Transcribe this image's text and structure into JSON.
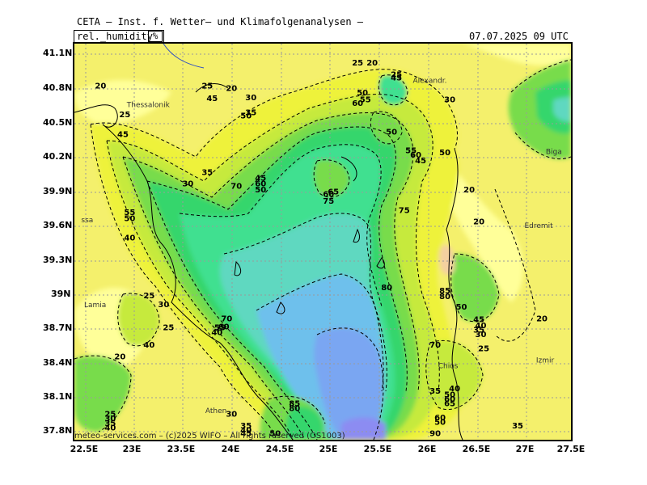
{
  "header": {
    "title": "CETA – Inst. f. Wetter– und Klimafolgenanalysen –",
    "parameter": "rel._humidity",
    "unit": "%",
    "datetime": "07.07.2025 09 UTC"
  },
  "axes": {
    "lat_ticks": [
      "41.1N",
      "40.8N",
      "40.5N",
      "40.2N",
      "39.9N",
      "39.6N",
      "39.3N",
      "39N",
      "38.7N",
      "38.4N",
      "38.1N",
      "37.8N"
    ],
    "lon_ticks": [
      "22.5E",
      "23E",
      "23.5E",
      "24E",
      "24.5E",
      "25E",
      "25.5E",
      "26E",
      "26.5E",
      "27E",
      "27.5E"
    ]
  },
  "cities": [
    {
      "name": "Thessalonik",
      "lon": 22.92,
      "lat": 40.64
    },
    {
      "name": "ssa",
      "lon": 22.45,
      "lat": 39.64
    },
    {
      "name": "Lamia",
      "lon": 22.48,
      "lat": 38.9
    },
    {
      "name": "Athen",
      "lon": 23.73,
      "lat": 37.98
    },
    {
      "name": "Alexandr.",
      "lon": 25.87,
      "lat": 40.85
    },
    {
      "name": "Biga",
      "lon": 27.24,
      "lat": 40.23
    },
    {
      "name": "Edremit",
      "lon": 27.02,
      "lat": 39.59
    },
    {
      "name": "Izmir",
      "lon": 27.14,
      "lat": 38.42
    },
    {
      "name": "Chios",
      "lon": 26.13,
      "lat": 38.37
    }
  ],
  "contour_labels": [
    {
      "text": "20",
      "lon": 22.65,
      "lat": 40.8
    },
    {
      "text": "25",
      "lon": 22.9,
      "lat": 40.55
    },
    {
      "text": "45",
      "lon": 22.88,
      "lat": 40.38
    },
    {
      "text": "55",
      "lon": 22.95,
      "lat": 39.7
    },
    {
      "text": "50",
      "lon": 22.95,
      "lat": 39.65
    },
    {
      "text": "40",
      "lon": 22.95,
      "lat": 39.48
    },
    {
      "text": "25",
      "lon": 23.15,
      "lat": 38.98
    },
    {
      "text": "30",
      "lon": 23.3,
      "lat": 38.9
    },
    {
      "text": "25",
      "lon": 23.35,
      "lat": 38.7
    },
    {
      "text": "40",
      "lon": 23.15,
      "lat": 38.55
    },
    {
      "text": "20",
      "lon": 22.85,
      "lat": 38.45
    },
    {
      "text": "25",
      "lon": 23.75,
      "lat": 40.8
    },
    {
      "text": "20",
      "lon": 24.0,
      "lat": 40.78
    },
    {
      "text": "30",
      "lon": 24.2,
      "lat": 40.7
    },
    {
      "text": "45",
      "lon": 23.8,
      "lat": 40.69
    },
    {
      "text": "35",
      "lon": 24.2,
      "lat": 40.57
    },
    {
      "text": "50",
      "lon": 24.15,
      "lat": 40.54
    },
    {
      "text": "30",
      "lon": 23.55,
      "lat": 39.95
    },
    {
      "text": "35",
      "lon": 23.75,
      "lat": 40.05
    },
    {
      "text": "70",
      "lon": 24.05,
      "lat": 39.93
    },
    {
      "text": "45",
      "lon": 24.3,
      "lat": 40.0
    },
    {
      "text": "60",
      "lon": 24.3,
      "lat": 39.95
    },
    {
      "text": "50",
      "lon": 24.3,
      "lat": 39.9
    },
    {
      "text": "25",
      "lon": 25.3,
      "lat": 41.0
    },
    {
      "text": "20",
      "lon": 25.45,
      "lat": 41.0
    },
    {
      "text": "50",
      "lon": 25.35,
      "lat": 40.74
    },
    {
      "text": "55",
      "lon": 25.38,
      "lat": 40.68
    },
    {
      "text": "60",
      "lon": 25.3,
      "lat": 40.65
    },
    {
      "text": "25",
      "lon": 25.7,
      "lat": 40.9
    },
    {
      "text": "45",
      "lon": 25.7,
      "lat": 40.87
    },
    {
      "text": "30",
      "lon": 26.25,
      "lat": 40.68
    },
    {
      "text": "50",
      "lon": 25.65,
      "lat": 40.4
    },
    {
      "text": "55",
      "lon": 25.85,
      "lat": 40.24
    },
    {
      "text": "60",
      "lon": 25.9,
      "lat": 40.2
    },
    {
      "text": "45",
      "lon": 25.95,
      "lat": 40.15
    },
    {
      "text": "50",
      "lon": 26.2,
      "lat": 40.22
    },
    {
      "text": "20",
      "lon": 26.45,
      "lat": 39.9
    },
    {
      "text": "20",
      "lon": 26.55,
      "lat": 39.62
    },
    {
      "text": "75",
      "lon": 25.78,
      "lat": 39.72
    },
    {
      "text": "60",
      "lon": 25.0,
      "lat": 39.86
    },
    {
      "text": "65",
      "lon": 25.05,
      "lat": 39.88
    },
    {
      "text": "75",
      "lon": 25.0,
      "lat": 39.8
    },
    {
      "text": "80",
      "lon": 25.6,
      "lat": 39.05
    },
    {
      "text": "85",
      "lon": 26.2,
      "lat": 39.02
    },
    {
      "text": "80",
      "lon": 26.2,
      "lat": 38.97
    },
    {
      "text": "50",
      "lon": 26.37,
      "lat": 38.88
    },
    {
      "text": "45",
      "lon": 26.55,
      "lat": 38.77
    },
    {
      "text": "40",
      "lon": 26.57,
      "lat": 38.72
    },
    {
      "text": "35",
      "lon": 26.55,
      "lat": 38.68
    },
    {
      "text": "30",
      "lon": 26.57,
      "lat": 38.64
    },
    {
      "text": "25",
      "lon": 26.6,
      "lat": 38.52
    },
    {
      "text": "20",
      "lon": 27.2,
      "lat": 38.78
    },
    {
      "text": "70",
      "lon": 26.1,
      "lat": 38.55
    },
    {
      "text": "70",
      "lon": 23.95,
      "lat": 38.78
    },
    {
      "text": "60",
      "lon": 23.92,
      "lat": 38.71
    },
    {
      "text": "55",
      "lon": 23.88,
      "lat": 38.7
    },
    {
      "text": "40",
      "lon": 23.85,
      "lat": 38.66
    },
    {
      "text": "35",
      "lon": 26.1,
      "lat": 38.15
    },
    {
      "text": "40",
      "lon": 26.3,
      "lat": 38.17
    },
    {
      "text": "50",
      "lon": 26.25,
      "lat": 38.12
    },
    {
      "text": "60",
      "lon": 26.25,
      "lat": 38.08
    },
    {
      "text": "65",
      "lon": 26.25,
      "lat": 38.04
    },
    {
      "text": "30",
      "lon": 24.0,
      "lat": 37.95
    },
    {
      "text": "35",
      "lon": 24.15,
      "lat": 37.85
    },
    {
      "text": "40",
      "lon": 24.15,
      "lat": 37.81
    },
    {
      "text": "45",
      "lon": 24.15,
      "lat": 37.78
    },
    {
      "text": "50",
      "lon": 24.45,
      "lat": 37.78
    },
    {
      "text": "85",
      "lon": 24.65,
      "lat": 38.04
    },
    {
      "text": "80",
      "lon": 24.65,
      "lat": 38.0
    },
    {
      "text": "60",
      "lon": 26.15,
      "lat": 37.92
    },
    {
      "text": "50",
      "lon": 26.15,
      "lat": 37.88
    },
    {
      "text": "90",
      "lon": 26.1,
      "lat": 37.78
    },
    {
      "text": "35",
      "lon": 26.95,
      "lat": 37.85
    },
    {
      "text": "25",
      "lon": 22.75,
      "lat": 37.95
    },
    {
      "text": "30",
      "lon": 22.75,
      "lat": 37.91
    },
    {
      "text": "35",
      "lon": 22.75,
      "lat": 37.87
    },
    {
      "text": "40",
      "lon": 22.75,
      "lat": 37.83
    }
  ],
  "copyright": "meteo-services.com – (c)2025 WIFO – All rights reserved (OS1003)",
  "colors": {
    "lt20": "#ffff99",
    "lt30": "#f4f06c",
    "lt40": "#eef23a",
    "lt50": "#c6ea3c",
    "lt60": "#78dc4c",
    "lt70": "#34d66c",
    "lt75": "#40e090",
    "lt80": "#5ed8c0",
    "lt85": "#6ec0ec",
    "lt90": "#7aa6f2",
    "gt90": "#8c8cf2",
    "dry": "#f4d0a0"
  }
}
